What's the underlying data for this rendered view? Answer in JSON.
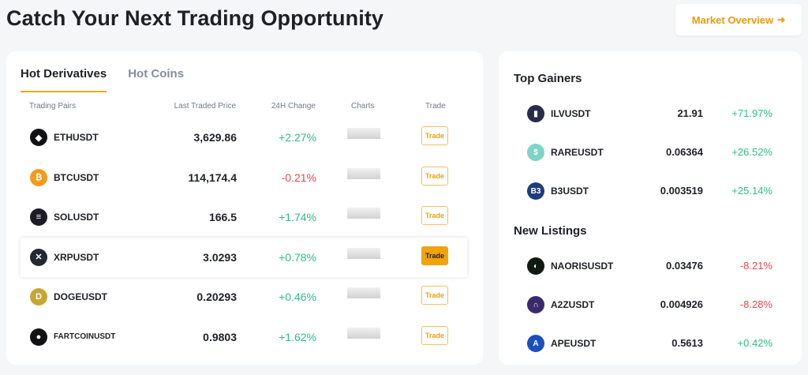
{
  "header": {
    "title": "Catch Your Next Trading Opportunity",
    "market_overview_label": "Market Overview",
    "arrow_glyph": "➔"
  },
  "tabs": [
    {
      "label": "Hot Derivatives",
      "active": true
    },
    {
      "label": "Hot Coins",
      "active": false
    }
  ],
  "columns": {
    "pairs": "Trading Pairs",
    "price": "Last Traded Price",
    "change": "24H Change",
    "charts": "Charts",
    "trade": "Trade"
  },
  "rows": [
    {
      "pair": "ETHUSDT",
      "price": "3,629.86",
      "change": "+2.27%",
      "trade": "Trade",
      "icon": "ethereum-icon",
      "icon_glyph": "◆",
      "icon_color": "#121214"
    },
    {
      "pair": "BTCUSDT",
      "price": "114,174.4",
      "change": "-0.21%",
      "trade": "Trade",
      "icon": "bitcoin-icon",
      "icon_glyph": "₿",
      "icon_color": "#f39b1b"
    },
    {
      "pair": "SOLUSDT",
      "price": "166.5",
      "change": "+1.74%",
      "trade": "Trade",
      "icon": "solana-icon",
      "icon_glyph": "≡",
      "icon_color": "#1d1b26"
    },
    {
      "pair": "XRPUSDT",
      "price": "3.0293",
      "change": "+0.78%",
      "trade": "Trade",
      "icon": "xrp-icon",
      "icon_glyph": "✕",
      "icon_color": "#23292f"
    },
    {
      "pair": "DOGEUSDT",
      "price": "0.20293",
      "change": "+0.46%",
      "trade": "Trade",
      "icon": "dogecoin-icon",
      "icon_glyph": "D",
      "icon_color": "#c9a634"
    },
    {
      "pair": "FARTCOINUSDT",
      "price": "0.9803",
      "change": "+1.62%",
      "trade": "Trade",
      "icon": "fartcoin-icon",
      "icon_glyph": "●",
      "icon_color": "#121214"
    }
  ],
  "top_gainers": {
    "title": "Top Gainers",
    "items": [
      {
        "pair": "ILVUSDT",
        "price": "21.91",
        "change": "+71.97%",
        "icon": "illuvium-icon",
        "icon_glyph": "▮",
        "icon_color": "#2a2a4a"
      },
      {
        "pair": "RAREUSDT",
        "price": "0.06364",
        "change": "+26.52%",
        "icon": "rare-icon",
        "icon_glyph": "$",
        "icon_color": "#7fd3c7"
      },
      {
        "pair": "B3USDT",
        "price": "0.003519",
        "change": "+25.14%",
        "icon": "b3-icon",
        "icon_glyph": "B3",
        "icon_color": "#1f3d7a"
      }
    ]
  },
  "new_listings": {
    "title": "New Listings",
    "items": [
      {
        "pair": "NAORISUSDT",
        "price": "0.03476",
        "change": "-8.21%",
        "icon": "naoris-icon",
        "icon_glyph": "◐",
        "icon_color": "#0f1a12"
      },
      {
        "pair": "A2ZUSDT",
        "price": "0.004926",
        "change": "-8.28%",
        "icon": "a2z-icon",
        "icon_glyph": "∩",
        "icon_color": "#3b2a6b"
      },
      {
        "pair": "APEUSDT",
        "price": "0.5613",
        "change": "+0.42%",
        "icon": "apecoin-icon",
        "icon_glyph": "A",
        "icon_color": "#1b4fbf"
      }
    ]
  },
  "colors": {
    "up": "#2ebd85",
    "down": "#e5484d",
    "accent": "#e8ab0b"
  }
}
